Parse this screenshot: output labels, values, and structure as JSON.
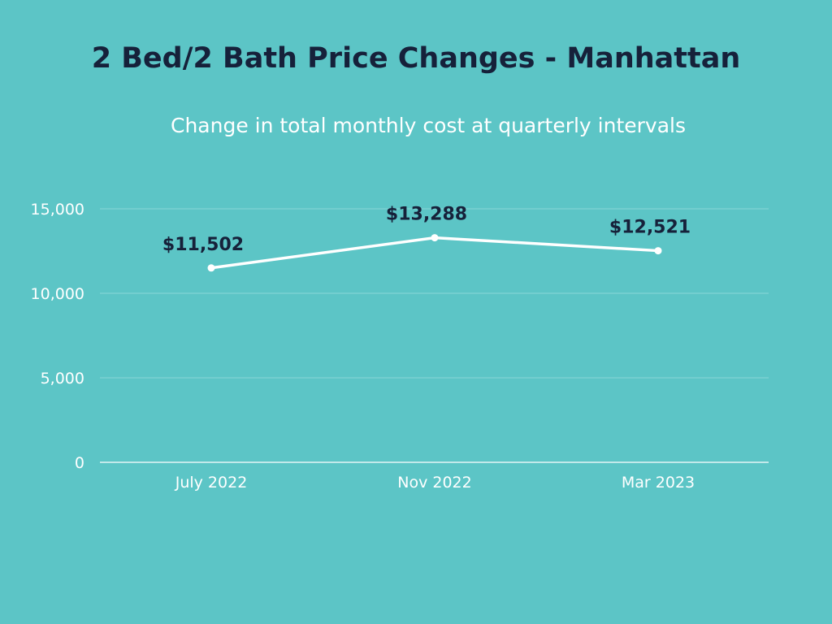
{
  "chart_data": {
    "type": "line",
    "title": "2 Bed/2 Bath Price Changes - Manhattan",
    "subtitle": "Change in total monthly cost at quarterly intervals",
    "categories": [
      "July 2022",
      "Nov 2022",
      "Mar 2023"
    ],
    "values": [
      11502,
      13288,
      12521
    ],
    "data_labels": [
      "$11,502",
      "$13,288",
      "$12,521"
    ],
    "y_ticks": [
      0,
      5000,
      10000,
      15000
    ],
    "y_tick_labels": [
      "0",
      "5,000",
      "10,000",
      "15,000"
    ],
    "ylim": [
      0,
      15000
    ],
    "xlabel": "",
    "ylabel": "",
    "grid": true,
    "legend": "none"
  },
  "colors": {
    "background": "#5cc5c6",
    "title": "#16213a",
    "line": "#ffffff",
    "gridline": "#8ad8d8",
    "label": "#16213a"
  }
}
